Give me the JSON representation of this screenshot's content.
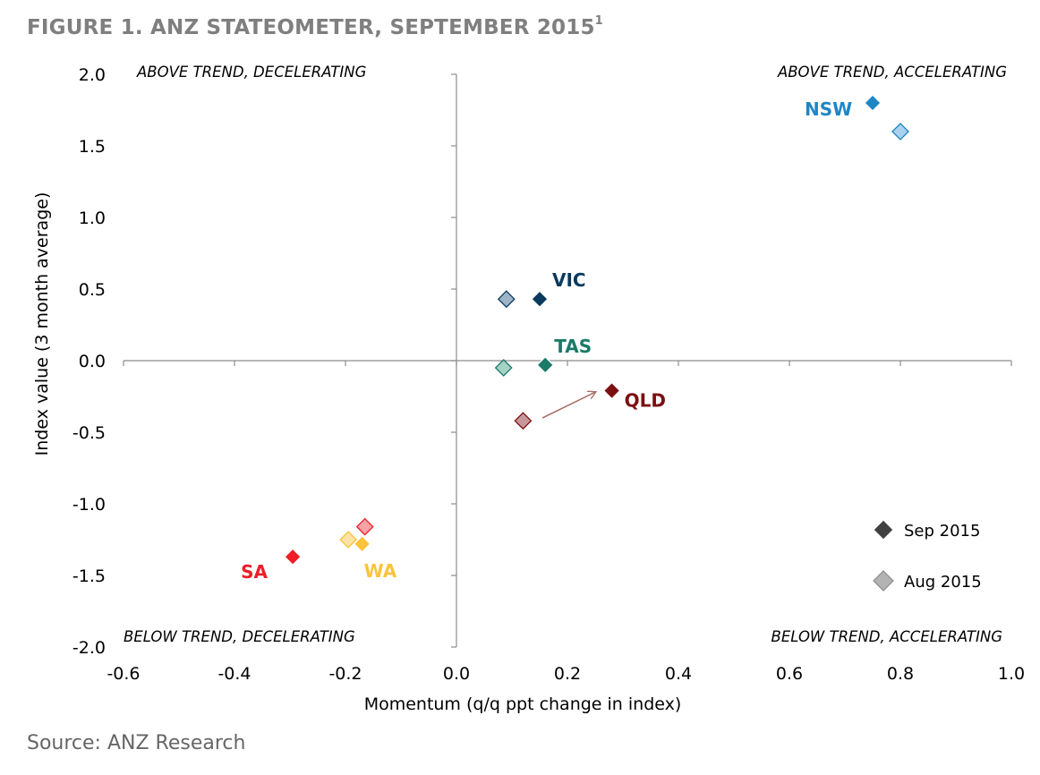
{
  "title": "FIGURE 1. ANZ STATEOMETER, SEPTEMBER 2015",
  "title_footnote": "1",
  "source": "Source: ANZ Research",
  "chart_data": {
    "type": "scatter",
    "xlabel": "Momentum (q/q ppt change in index)",
    "ylabel": "Index value (3 month average)",
    "xlim": [
      -0.6,
      1.0
    ],
    "ylim": [
      -2.0,
      2.0
    ],
    "x_ticks": [
      "-0.6",
      "-0.4",
      "-0.2",
      "0.0",
      "0.2",
      "0.4",
      "0.6",
      "0.8",
      "1.0"
    ],
    "y_ticks": [
      "2.0",
      "1.5",
      "1.0",
      "0.5",
      "0.0",
      "-0.5",
      "-1.0",
      "-1.5",
      "-2.0"
    ],
    "grid": false,
    "quadrant_labels": {
      "top_left": "ABOVE TREND, DECELERATING",
      "top_right": "ABOVE TREND, ACCELERATING",
      "bottom_left": "BELOW TREND, DECELERATING",
      "bottom_right": "BELOW TREND, ACCELERATING"
    },
    "legend": {
      "placement": "bottom-right",
      "items": [
        {
          "label": "Sep 2015",
          "color": "#404040"
        },
        {
          "label": "Aug 2015",
          "color": "#b3b3b3"
        }
      ]
    },
    "series": [
      {
        "state": "NSW",
        "color": "#1f86c4",
        "light_color": "#a9d2ee",
        "sep": {
          "x": 0.75,
          "y": 1.8
        },
        "aug": {
          "x": 0.8,
          "y": 1.6
        }
      },
      {
        "state": "VIC",
        "color": "#0b3a5e",
        "light_color": "#9fb4c6",
        "sep": {
          "x": 0.15,
          "y": 0.43
        },
        "aug": {
          "x": 0.09,
          "y": 0.43
        }
      },
      {
        "state": "TAS",
        "color": "#1b7a68",
        "light_color": "#a6d2c6",
        "sep": {
          "x": 0.16,
          "y": -0.03
        },
        "aug": {
          "x": 0.085,
          "y": -0.05
        }
      },
      {
        "state": "QLD",
        "color": "#7b0f12",
        "light_color": "#c79799",
        "sep": {
          "x": 0.28,
          "y": -0.21
        },
        "aug": {
          "x": 0.12,
          "y": -0.42
        }
      },
      {
        "state": "SA",
        "color": "#ee1d26",
        "light_color": "#f5a3a7",
        "sep": {
          "x": -0.295,
          "y": -1.37
        },
        "aug": {
          "x": -0.165,
          "y": -1.16
        }
      },
      {
        "state": "WA",
        "color": "#fcc33c",
        "light_color": "#fde2a6",
        "sep": {
          "x": -0.17,
          "y": -1.28
        },
        "aug": {
          "x": -0.195,
          "y": -1.25
        }
      }
    ],
    "annotation_arrow": {
      "from": {
        "x": 0.155,
        "y": -0.4
      },
      "to": {
        "x": 0.25,
        "y": -0.22
      },
      "color": "#a8716d"
    }
  }
}
